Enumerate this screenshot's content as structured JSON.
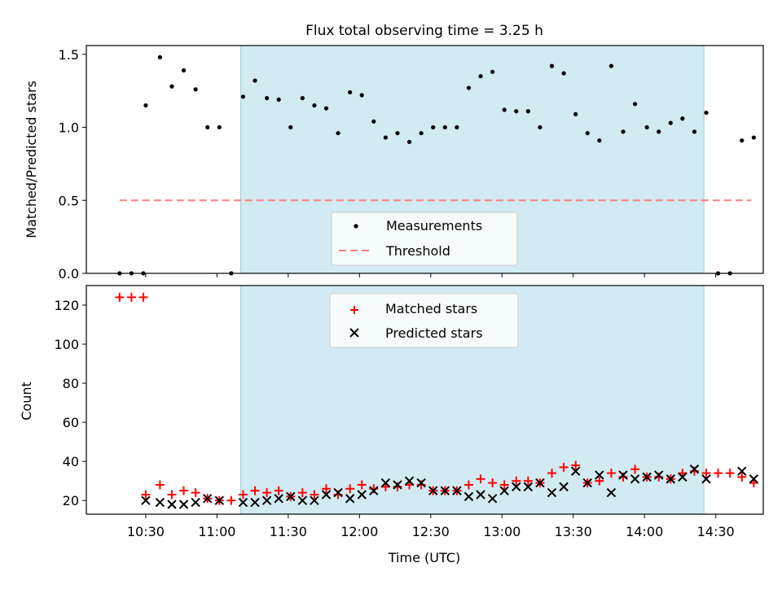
{
  "chart_data": [
    {
      "type": "scatter",
      "title": "Flux total observing time = 3.25 h",
      "ylabel": "Matched/Predicted stars",
      "xlabel": "",
      "xlim": [
        "10:05",
        "14:50"
      ],
      "ylim": [
        0,
        1.56
      ],
      "yticks": [
        "0.0",
        "0.5",
        "1.0",
        "1.5"
      ],
      "shaded_region": {
        "x": [
          "11:10",
          "14:25"
        ],
        "color": "#add8e6"
      },
      "legend": {
        "placement": "bottom-center",
        "entries": [
          "Measurements",
          "Threshold"
        ]
      },
      "series": [
        {
          "name": "Measurements",
          "marker": "dot",
          "color": "#000000",
          "x": [
            "10:19",
            "10:24",
            "10:29",
            "10:30",
            "10:36",
            "10:41",
            "10:46",
            "10:51",
            "10:56",
            "11:01",
            "11:06",
            "11:11",
            "11:16",
            "11:21",
            "11:26",
            "11:31",
            "11:36",
            "11:41",
            "11:46",
            "11:51",
            "11:56",
            "12:01",
            "12:06",
            "12:11",
            "12:16",
            "12:21",
            "12:26",
            "12:31",
            "12:36",
            "12:41",
            "12:46",
            "12:51",
            "12:56",
            "13:01",
            "13:06",
            "13:11",
            "13:16",
            "13:21",
            "13:26",
            "13:31",
            "13:36",
            "13:41",
            "13:46",
            "13:51",
            "13:56",
            "14:01",
            "14:06",
            "14:11",
            "14:16",
            "14:21",
            "14:26",
            "14:31",
            "14:36",
            "14:41",
            "14:46"
          ],
          "y": [
            0,
            0,
            0,
            1.15,
            1.48,
            1.28,
            1.39,
            1.26,
            1.0,
            1.0,
            0,
            1.21,
            1.32,
            1.2,
            1.19,
            1.0,
            1.2,
            1.15,
            1.13,
            0.96,
            1.24,
            1.22,
            1.04,
            0.93,
            0.96,
            0.9,
            0.96,
            1.0,
            1.0,
            1.0,
            1.27,
            1.35,
            1.38,
            1.12,
            1.11,
            1.11,
            1.0,
            1.42,
            1.37,
            1.09,
            0.96,
            0.91,
            1.42,
            0.97,
            1.16,
            1.0,
            0.97,
            1.03,
            1.06,
            0.97,
            1.1,
            0,
            0,
            0.91,
            0.93
          ]
        },
        {
          "name": "Threshold",
          "marker": "dashed-line",
          "color": "#ff7f7f",
          "x": [
            "10:19",
            "14:45"
          ],
          "y": [
            0.5,
            0.5
          ]
        }
      ]
    },
    {
      "type": "scatter",
      "title": "",
      "ylabel": "Count",
      "xlabel": "Time (UTC)",
      "xlim": [
        "10:05",
        "14:50"
      ],
      "ylim": [
        13,
        130
      ],
      "yticks": [
        "20",
        "40",
        "60",
        "80",
        "100",
        "120"
      ],
      "xticks": [
        "10:30",
        "11:00",
        "11:30",
        "12:00",
        "12:30",
        "13:00",
        "13:30",
        "14:00",
        "14:30"
      ],
      "shaded_region": {
        "x": [
          "11:10",
          "14:25"
        ],
        "color": "#add8e6"
      },
      "legend": {
        "placement": "top-center",
        "entries": [
          "Matched stars",
          "Predicted stars"
        ]
      },
      "series": [
        {
          "name": "Matched stars",
          "marker": "plus",
          "color": "#ff0000",
          "x": [
            "10:19",
            "10:24",
            "10:29",
            "10:30",
            "10:36",
            "10:41",
            "10:46",
            "10:51",
            "10:56",
            "11:01",
            "11:06",
            "11:11",
            "11:16",
            "11:21",
            "11:26",
            "11:31",
            "11:36",
            "11:41",
            "11:46",
            "11:51",
            "11:56",
            "12:01",
            "12:06",
            "12:11",
            "12:16",
            "12:21",
            "12:26",
            "12:31",
            "12:36",
            "12:41",
            "12:46",
            "12:51",
            "12:56",
            "13:01",
            "13:06",
            "13:11",
            "13:16",
            "13:21",
            "13:26",
            "13:31",
            "13:36",
            "13:41",
            "13:46",
            "13:51",
            "13:56",
            "14:01",
            "14:06",
            "14:11",
            "14:16",
            "14:21",
            "14:26",
            "14:31",
            "14:36",
            "14:41",
            "14:46"
          ],
          "y": [
            124,
            124,
            124,
            23,
            28,
            23,
            25,
            24,
            21,
            20,
            20,
            23,
            25,
            24,
            25,
            22,
            24,
            23,
            26,
            23,
            26,
            28,
            26,
            27,
            27,
            28,
            28,
            25,
            25,
            25,
            28,
            31,
            29,
            28,
            30,
            30,
            29,
            34,
            37,
            38,
            29,
            30,
            34,
            32,
            36,
            32,
            32,
            31,
            34,
            35,
            34,
            34,
            34,
            32,
            29
          ]
        },
        {
          "name": "Predicted stars",
          "marker": "x",
          "color": "#000000",
          "x": [
            "10:30",
            "10:36",
            "10:41",
            "10:46",
            "10:51",
            "10:56",
            "11:01",
            "11:11",
            "11:16",
            "11:21",
            "11:26",
            "11:31",
            "11:36",
            "11:41",
            "11:46",
            "11:51",
            "11:56",
            "12:01",
            "12:06",
            "12:11",
            "12:16",
            "12:21",
            "12:26",
            "12:31",
            "12:36",
            "12:41",
            "12:46",
            "12:51",
            "12:56",
            "13:01",
            "13:06",
            "13:11",
            "13:16",
            "13:21",
            "13:26",
            "13:31",
            "13:36",
            "13:41",
            "13:46",
            "13:51",
            "13:56",
            "14:01",
            "14:06",
            "14:11",
            "14:16",
            "14:21",
            "14:26",
            "14:41",
            "14:46"
          ],
          "y": [
            20,
            19,
            18,
            18,
            19,
            21,
            20,
            19,
            19,
            20,
            21,
            22,
            20,
            20,
            23,
            24,
            21,
            23,
            25,
            29,
            28,
            30,
            29,
            25,
            25,
            25,
            22,
            23,
            21,
            25,
            27,
            27,
            29,
            24,
            27,
            35,
            29,
            33,
            24,
            33,
            31,
            32,
            33,
            31,
            32,
            36,
            31,
            35,
            31
          ]
        }
      ]
    }
  ]
}
